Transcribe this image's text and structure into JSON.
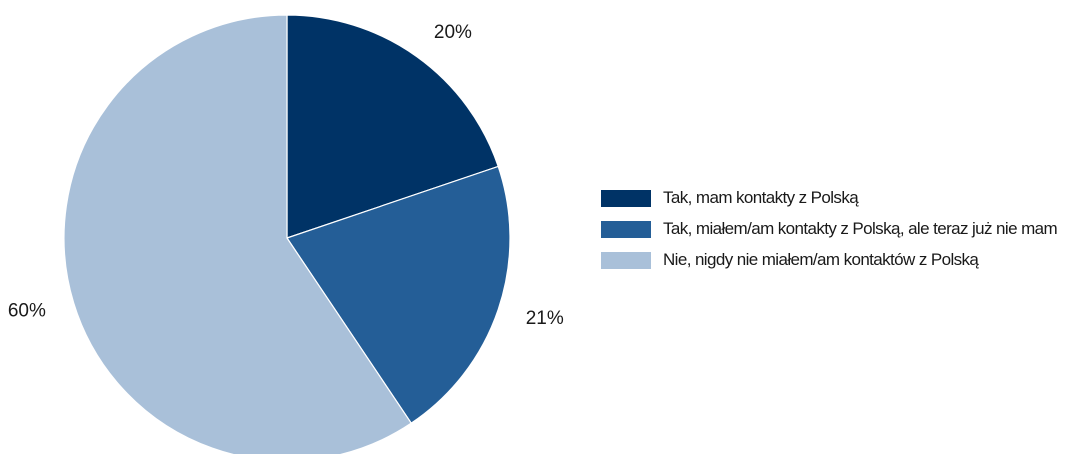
{
  "chart_data": {
    "type": "pie",
    "title": "",
    "start_angle_deg": 0,
    "direction": "clockwise",
    "slices": [
      {
        "label": "Tak, mam kontakty z Polską",
        "value": 20,
        "value_label": "20%",
        "color": "#003366"
      },
      {
        "label": "Tak, miałem/am kontakty z Polską, ale teraz już nie mam",
        "value": 21,
        "value_label": "21%",
        "color": "#245e97"
      },
      {
        "label": "Nie, nigdy nie miałem/am kontaktów z Polską",
        "value": 60,
        "value_label": "60%",
        "color": "#a9c0d9"
      }
    ],
    "legend_position": "right"
  }
}
